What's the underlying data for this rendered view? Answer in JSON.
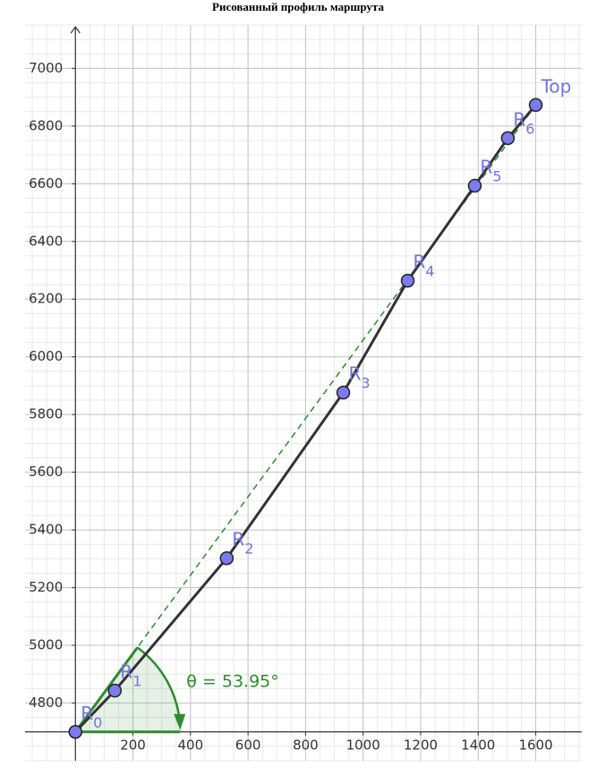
{
  "chart_data": {
    "type": "line",
    "title": "Рисованный профиль маршрута",
    "x": [
      0,
      137,
      526,
      931,
      1155,
      1388,
      1503,
      1600
    ],
    "series": [
      {
        "color": "#333333",
        "point_color": "#7b7bef",
        "values": [
          4700,
          4843,
          5302,
          5876,
          6264,
          6593,
          6758,
          6873
        ]
      }
    ],
    "labels": [
      {
        "name": "R",
        "sub": "0"
      },
      {
        "name": "R",
        "sub": "1"
      },
      {
        "name": "R",
        "sub": "2"
      },
      {
        "name": "R",
        "sub": "3"
      },
      {
        "name": "R",
        "sub": "4"
      },
      {
        "name": "R",
        "sub": "5"
      },
      {
        "name": "R",
        "sub": "6"
      },
      {
        "name": "Top"
      }
    ],
    "annotation": "θ = 53.95°",
    "annotation_color": "#2e8b2e",
    "xlim": [
      -175,
      1760
    ],
    "ylim": [
      4600,
      7150
    ],
    "xticks": [
      200,
      400,
      600,
      800,
      1000,
      1200,
      1400,
      1600
    ],
    "yticks": [
      4800,
      5000,
      5200,
      5400,
      5600,
      5800,
      6000,
      6200,
      6400,
      6600,
      6800,
      7000
    ],
    "grid": true
  }
}
